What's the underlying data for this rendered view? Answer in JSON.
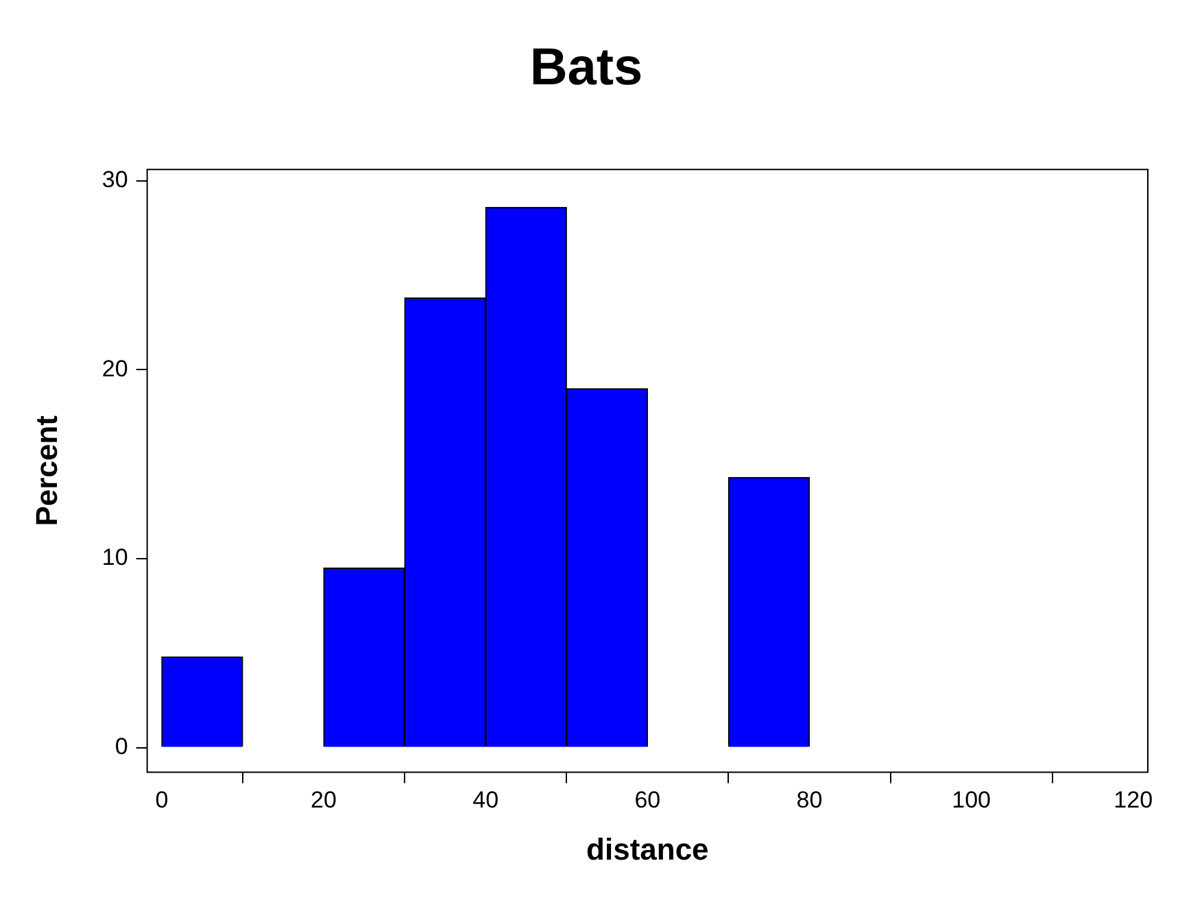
{
  "chart_data": {
    "type": "histogram",
    "title": "Bats",
    "xlabel": "distance",
    "ylabel": "Percent",
    "bins": [
      0,
      10,
      20,
      30,
      40,
      50,
      60,
      70,
      80,
      90,
      100,
      110,
      120
    ],
    "values": [
      4.8,
      0,
      9.5,
      23.8,
      28.6,
      19,
      0,
      14.3,
      0,
      0,
      0,
      0
    ],
    "color": "#0000ff",
    "xlim": [
      -1.8,
      121.8
    ],
    "xticks": [
      0,
      20,
      40,
      60,
      80,
      100,
      120
    ],
    "ylim": [
      -1.3,
      30.6
    ],
    "yticks": [
      0,
      10,
      20,
      30
    ],
    "grid": false,
    "legend": false
  }
}
